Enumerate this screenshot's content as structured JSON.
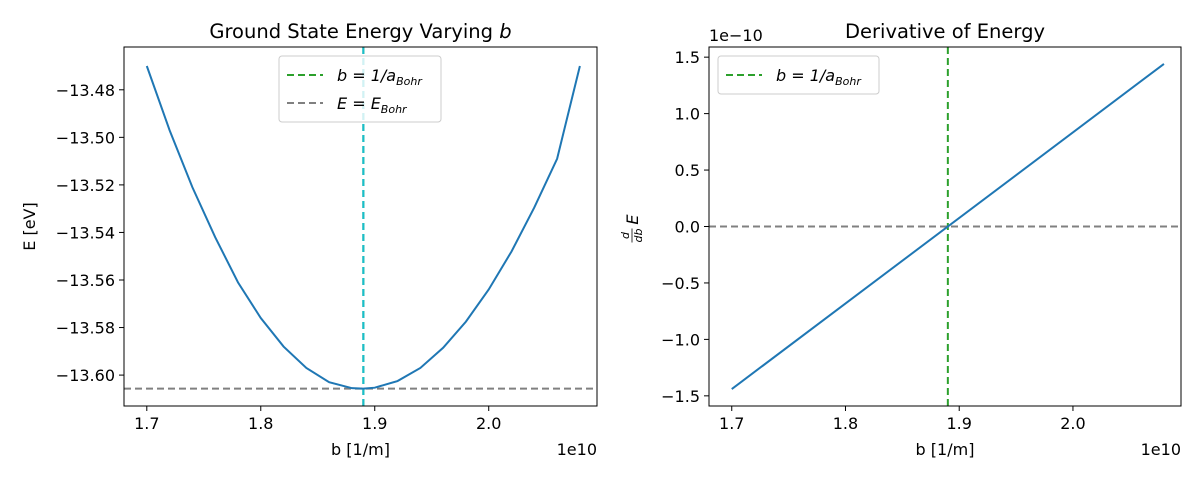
{
  "chart_data": [
    {
      "type": "line",
      "title": "Ground State Energy Varying ",
      "title_var": "b",
      "xlabel": "b [1/m]",
      "ylabel": "E [eV]",
      "x_offset_label": "1e10",
      "xlim": [
        16800000000.0,
        20950000000.0
      ],
      "ylim": [
        -13.613,
        -13.462
      ],
      "xticks": [
        17000000000.0,
        18000000000.0,
        19000000000.0,
        20000000000.0
      ],
      "xtick_labels": [
        "1.7",
        "1.8",
        "1.9",
        "2.0"
      ],
      "yticks": [
        -13.48,
        -13.5,
        -13.52,
        -13.54,
        -13.56,
        -13.58,
        -13.6
      ],
      "ytick_labels": [
        "−13.48",
        "−13.50",
        "−13.52",
        "−13.54",
        "−13.56",
        "−13.58",
        "−13.60"
      ],
      "series": [
        {
          "color": "#1f77b4",
          "x": [
            17000000000.0,
            17200000000.0,
            17400000000.0,
            17600000000.0,
            17800000000.0,
            18000000000.0,
            18200000000.0,
            18400000000.0,
            18600000000.0,
            18800000000.0,
            18900000000.0,
            19000000000.0,
            19200000000.0,
            19400000000.0,
            19600000000.0,
            19800000000.0,
            20000000000.0,
            20200000000.0,
            20400000000.0,
            20600000000.0,
            20800000000.0
          ],
          "y": [
            -13.47,
            -13.497,
            -13.521,
            -13.542,
            -13.561,
            -13.576,
            -13.588,
            -13.597,
            -13.603,
            -13.6055,
            -13.6057,
            -13.6053,
            -13.6025,
            -13.597,
            -13.5885,
            -13.5775,
            -13.564,
            -13.548,
            -13.5295,
            -13.509,
            -13.47
          ]
        }
      ],
      "vlines": [
        {
          "x": 18900000000.0,
          "color": "#2ca02c",
          "style": "dashed"
        },
        {
          "x": 18900000000.0,
          "color": "#17becf",
          "style": "dashed"
        }
      ],
      "hlines": [
        {
          "y": -13.6057,
          "color": "#808080",
          "style": "dashed"
        }
      ],
      "legend": {
        "location": "top-center",
        "entries": [
          {
            "color": "#2ca02c",
            "label_main": "b = 1/a",
            "label_sub": "Bohr"
          },
          {
            "color": "#808080",
            "label_main": "E = E",
            "label_sub": "Bohr"
          }
        ]
      }
    },
    {
      "type": "line",
      "title": "Derivative of Energy",
      "xlabel": "b [1/m]",
      "ylabel_num": "d",
      "ylabel_den": "db",
      "ylabel_var": "E",
      "x_offset_label": "1e10",
      "y_offset_label": "1e−10",
      "xlim": [
        16800000000.0,
        20950000000.0
      ],
      "ylim": [
        -1.59,
        1.59
      ],
      "xticks": [
        17000000000.0,
        18000000000.0,
        19000000000.0,
        20000000000.0
      ],
      "xtick_labels": [
        "1.7",
        "1.8",
        "1.9",
        "2.0"
      ],
      "yticks": [
        1.5,
        1.0,
        0.5,
        0.0,
        -0.5,
        -1.0,
        -1.5
      ],
      "ytick_labels": [
        "1.5",
        "1.0",
        "0.5",
        "0.0",
        "−0.5",
        "−1.0",
        "−1.5"
      ],
      "series": [
        {
          "color": "#1f77b4",
          "x": [
            17000000000.0,
            20800000000.0
          ],
          "y": [
            -1.44,
            1.44
          ]
        }
      ],
      "vlines": [
        {
          "x": 18900000000.0,
          "color": "#2ca02c",
          "style": "dashed"
        }
      ],
      "hlines": [
        {
          "y": 0.0,
          "color": "#808080",
          "style": "dashed"
        }
      ],
      "legend": {
        "location": "top-left",
        "entries": [
          {
            "color": "#2ca02c",
            "label_main": "b = 1/a",
            "label_sub": "Bohr"
          }
        ]
      }
    }
  ]
}
